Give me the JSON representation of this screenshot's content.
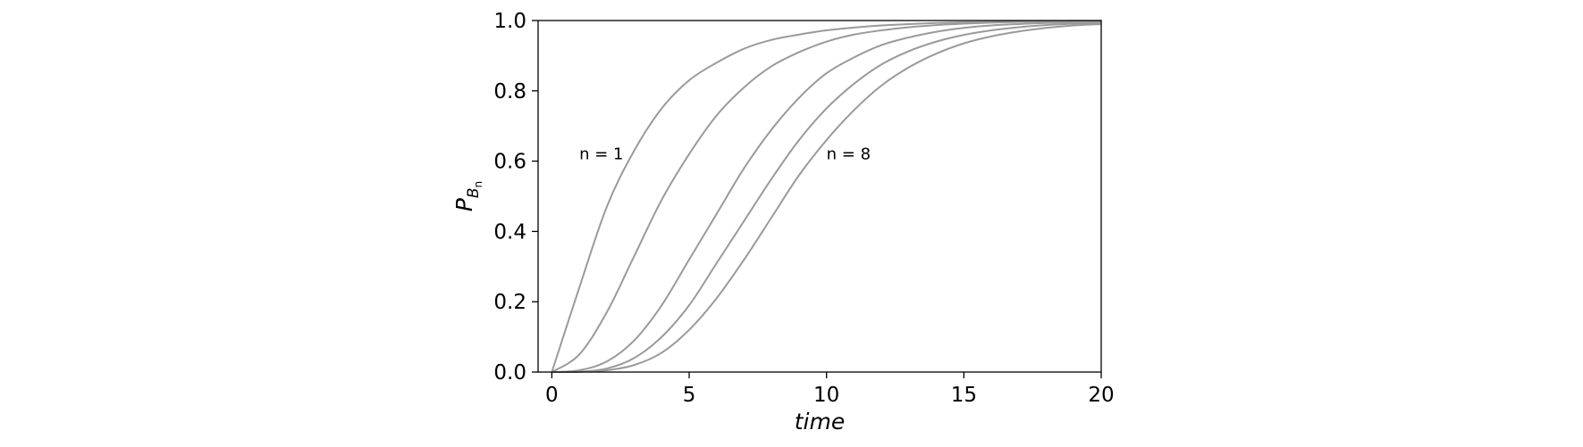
{
  "chart_data": {
    "type": "line",
    "title": "",
    "xlabel": "time",
    "ylabel": {
      "base": "P",
      "sub": "B",
      "subsub": "n"
    },
    "xlim": [
      -0.5,
      20
    ],
    "ylim": [
      0,
      1
    ],
    "xticks": [
      0,
      5,
      10,
      15,
      20
    ],
    "xtick_labels": [
      "0",
      "5",
      "10",
      "15",
      "20"
    ],
    "yticks": [
      0,
      0.2,
      0.4,
      0.6,
      0.8,
      1.0
    ],
    "ytick_labels": [
      "0.0",
      "0.2",
      "0.4",
      "0.6",
      "0.8",
      "1.0"
    ],
    "grid": false,
    "legend": false,
    "line_color": "#9a9a9a",
    "x": [
      0,
      1,
      2,
      3,
      4,
      5,
      6,
      7,
      8,
      9,
      10,
      11,
      12,
      13,
      14,
      15,
      16,
      17,
      18,
      19,
      20
    ],
    "series": [
      {
        "values": [
          0,
          0.24,
          0.47,
          0.63,
          0.75,
          0.83,
          0.88,
          0.92,
          0.945,
          0.96,
          0.972,
          0.98,
          0.986,
          0.99,
          0.993,
          0.995,
          0.996,
          0.997,
          0.998,
          0.999,
          0.999
        ]
      },
      {
        "values": [
          0,
          0.05,
          0.17,
          0.33,
          0.49,
          0.62,
          0.73,
          0.81,
          0.87,
          0.91,
          0.94,
          0.96,
          0.972,
          0.981,
          0.987,
          0.991,
          0.994,
          0.996,
          0.997,
          0.998,
          0.999
        ]
      },
      {
        "values": [
          0,
          0.005,
          0.03,
          0.09,
          0.19,
          0.32,
          0.45,
          0.58,
          0.69,
          0.78,
          0.85,
          0.895,
          0.93,
          0.952,
          0.968,
          0.979,
          0.986,
          0.99,
          0.993,
          0.995,
          0.997
        ]
      },
      {
        "values": [
          0,
          0.001,
          0.01,
          0.04,
          0.1,
          0.19,
          0.31,
          0.43,
          0.55,
          0.66,
          0.75,
          0.82,
          0.875,
          0.913,
          0.94,
          0.959,
          0.972,
          0.981,
          0.987,
          0.991,
          0.994
        ]
      },
      {
        "values": [
          0,
          0.0005,
          0.005,
          0.02,
          0.055,
          0.12,
          0.21,
          0.32,
          0.44,
          0.56,
          0.66,
          0.745,
          0.815,
          0.867,
          0.906,
          0.935,
          0.955,
          0.969,
          0.979,
          0.986,
          0.99
        ]
      }
    ],
    "annotations": [
      {
        "text": "n = 1",
        "x": 1.0,
        "y": 0.62
      },
      {
        "text": "n = 8",
        "x": 10.0,
        "y": 0.62
      }
    ]
  }
}
